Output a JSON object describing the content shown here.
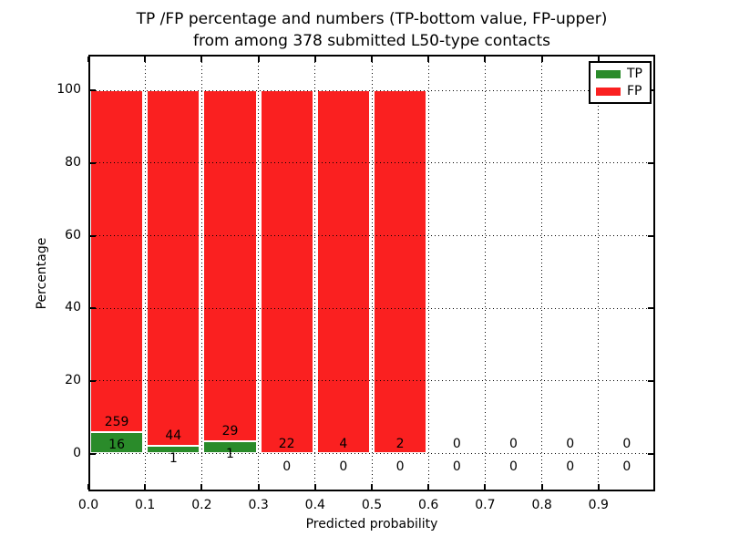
{
  "chart_data": {
    "type": "bar",
    "stacked": true,
    "title_line1": "TP /FP percentage and numbers (TP-bottom value, FP-upper)",
    "title_line2": "from among 378 submitted L50-type contacts",
    "xlabel": "Predicted probability",
    "ylabel": "Percentage",
    "x_tick_labels": [
      "0.0",
      "0.1",
      "0.2",
      "0.3",
      "0.4",
      "0.5",
      "0.6",
      "0.7",
      "0.8",
      "0.9"
    ],
    "y_tick_values": [
      0,
      20,
      40,
      60,
      80,
      100
    ],
    "xlim": [
      0.0,
      1.0
    ],
    "ylim": [
      -10.5,
      110
    ],
    "bin_width": 0.1,
    "bin_ranges": [
      "0.0-0.1",
      "0.1-0.2",
      "0.2-0.3",
      "0.3-0.4",
      "0.4-0.5",
      "0.5-0.6",
      "0.6-0.7",
      "0.7-0.8",
      "0.8-0.9",
      "0.9-1.0"
    ],
    "series": [
      {
        "name": "TP",
        "color": "#2a8b2a",
        "counts": [
          16,
          1,
          1,
          0,
          0,
          0,
          0,
          0,
          0,
          0
        ]
      },
      {
        "name": "FP",
        "color": "#fa2020",
        "counts": [
          259,
          44,
          29,
          22,
          4,
          2,
          0,
          0,
          0,
          0
        ]
      }
    ],
    "bars_normalized_to_pct": 100,
    "grid": "dotted",
    "legend_position": "upper right",
    "colors": {
      "tp_green": "#2a8b2a",
      "fp_red": "#fa2020",
      "grid": "#000000",
      "text": "#000000",
      "background": "#ffffff"
    }
  }
}
